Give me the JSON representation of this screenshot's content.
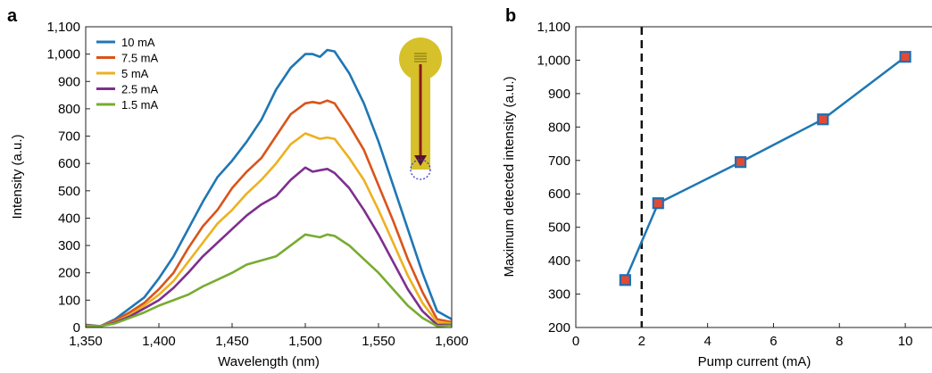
{
  "panels": {
    "a": {
      "label": "a"
    },
    "b": {
      "label": "b"
    }
  },
  "colors": {
    "10 mA": "#1f77b4",
    "7.5 mA": "#d9541a",
    "5 mA": "#edb120",
    "2.5 mA": "#7e2f8e",
    "1.5 mA": "#77ac30",
    "inset_body": "#d6c12a",
    "inset_arrow": "#8b1a1a",
    "marker_fill": "#e34a33",
    "marker_edge": "#1f6fb2",
    "line_b": "#1f77b4"
  },
  "chart_data": [
    {
      "type": "line",
      "panel": "a",
      "xlabel": "Wavelength (nm)",
      "ylabel": "Intensity (a.u.)",
      "xlim": [
        1350,
        1600
      ],
      "ylim": [
        0,
        1100
      ],
      "xticks": [
        1350,
        1400,
        1450,
        1500,
        1550,
        1600
      ],
      "xtick_labels": [
        "1,350",
        "1,400",
        "1,450",
        "1,500",
        "1,550",
        "1,600"
      ],
      "yticks": [
        0,
        100,
        200,
        300,
        400,
        500,
        600,
        700,
        800,
        900,
        1000,
        1100
      ],
      "ytick_labels": [
        "0",
        "100",
        "200",
        "300",
        "400",
        "500",
        "600",
        "700",
        "800",
        "900",
        "1,000",
        "1,100"
      ],
      "legend_position": "top-left",
      "grid": false,
      "x": [
        1350,
        1360,
        1370,
        1380,
        1390,
        1400,
        1410,
        1420,
        1430,
        1440,
        1450,
        1460,
        1470,
        1480,
        1490,
        1500,
        1505,
        1510,
        1515,
        1520,
        1530,
        1540,
        1550,
        1560,
        1570,
        1580,
        1590,
        1600
      ],
      "series": [
        {
          "name": "10 mA",
          "values": [
            10,
            5,
            30,
            70,
            110,
            180,
            260,
            360,
            460,
            550,
            610,
            680,
            760,
            870,
            950,
            1000,
            1000,
            990,
            1015,
            1010,
            930,
            820,
            680,
            520,
            360,
            200,
            60,
            30
          ]
        },
        {
          "name": "7.5 mA",
          "values": [
            8,
            5,
            25,
            55,
            90,
            140,
            200,
            290,
            370,
            430,
            510,
            570,
            620,
            700,
            780,
            820,
            825,
            820,
            830,
            820,
            740,
            650,
            520,
            390,
            250,
            130,
            30,
            20
          ]
        },
        {
          "name": "5 mA",
          "values": [
            6,
            5,
            20,
            45,
            80,
            120,
            170,
            240,
            310,
            380,
            430,
            490,
            540,
            600,
            670,
            710,
            700,
            690,
            695,
            690,
            620,
            540,
            430,
            310,
            190,
            90,
            20,
            15
          ]
        },
        {
          "name": "2.5 mA",
          "values": [
            5,
            5,
            18,
            40,
            70,
            100,
            145,
            200,
            260,
            310,
            360,
            410,
            450,
            480,
            540,
            585,
            570,
            575,
            580,
            565,
            510,
            430,
            340,
            240,
            140,
            60,
            10,
            10
          ]
        },
        {
          "name": "1.5 mA",
          "values": [
            4,
            5,
            15,
            35,
            55,
            80,
            100,
            120,
            150,
            175,
            200,
            230,
            245,
            260,
            300,
            340,
            335,
            330,
            340,
            335,
            300,
            250,
            200,
            140,
            80,
            35,
            5,
            8
          ]
        }
      ]
    },
    {
      "type": "line",
      "panel": "b",
      "xlabel": "Pump current (mA)",
      "ylabel": "Maximum detected intensity (a.u.)",
      "xlim": [
        0,
        11
      ],
      "ylim": [
        200,
        1100
      ],
      "xticks": [
        0,
        2,
        4,
        6,
        8,
        10
      ],
      "xtick_labels": [
        "0",
        "2",
        "4",
        "6",
        "8",
        "10"
      ],
      "yticks": [
        200,
        300,
        400,
        500,
        600,
        700,
        800,
        900,
        1000,
        1100
      ],
      "ytick_labels": [
        "200",
        "300",
        "400",
        "500",
        "600",
        "700",
        "800",
        "900",
        "1,000",
        "1,100"
      ],
      "grid": false,
      "threshold_x": 2,
      "series": [
        {
          "x": [
            1.5,
            2.5,
            5,
            7.5,
            10
          ],
          "values": [
            342,
            572,
            695,
            823,
            1010
          ]
        }
      ]
    }
  ]
}
